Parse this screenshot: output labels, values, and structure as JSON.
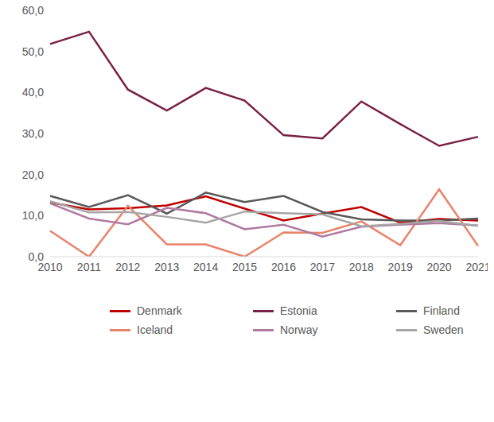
{
  "chart_data": {
    "type": "line",
    "categories": [
      "2010",
      "2011",
      "2012",
      "2013",
      "2014",
      "2015",
      "2016",
      "2017",
      "2018",
      "2019",
      "2020",
      "2021"
    ],
    "series": [
      {
        "name": "Denmark",
        "color": "#c00000",
        "values": [
          13.2,
          11.5,
          11.8,
          12.5,
          14.7,
          11.7,
          8.8,
          10.5,
          12.1,
          8.3,
          9.2,
          8.8
        ]
      },
      {
        "name": "Estonia",
        "color": "#7a2048",
        "values": [
          51.8,
          54.8,
          40.7,
          35.6,
          41.1,
          38.0,
          29.6,
          28.8,
          37.8,
          32.3,
          27.0,
          29.2
        ]
      },
      {
        "name": "Finland",
        "color": "#595959",
        "values": [
          14.8,
          12.1,
          15.0,
          10.5,
          15.6,
          13.3,
          14.8,
          10.9,
          9.1,
          8.8,
          8.8,
          9.3
        ]
      },
      {
        "name": "Iceland",
        "color": "#e8836a",
        "values": [
          6.3,
          0.0,
          12.4,
          3.0,
          3.0,
          0.0,
          5.9,
          5.8,
          8.6,
          2.8,
          16.4,
          2.6
        ]
      },
      {
        "name": "Norway",
        "color": "#b07aa1",
        "values": [
          13.0,
          9.3,
          7.9,
          11.9,
          10.6,
          6.7,
          7.8,
          4.9,
          7.3,
          7.8,
          8.2,
          7.6
        ]
      },
      {
        "name": "Sweden",
        "color": "#a6a6a6",
        "values": [
          13.5,
          10.8,
          10.9,
          9.7,
          8.3,
          11.0,
          10.6,
          10.3,
          7.4,
          8.0,
          8.7,
          7.5
        ]
      }
    ],
    "ylim": [
      0,
      60
    ],
    "yticks": [
      {
        "value": 0,
        "label": "0,0"
      },
      {
        "value": 10,
        "label": "10,0"
      },
      {
        "value": 20,
        "label": "20,0"
      },
      {
        "value": 30,
        "label": "30,0"
      },
      {
        "value": 40,
        "label": "40,0"
      },
      {
        "value": 50,
        "label": "50,0"
      },
      {
        "value": 60,
        "label": "60,0"
      }
    ],
    "grid": false,
    "legend": "bottom"
  }
}
